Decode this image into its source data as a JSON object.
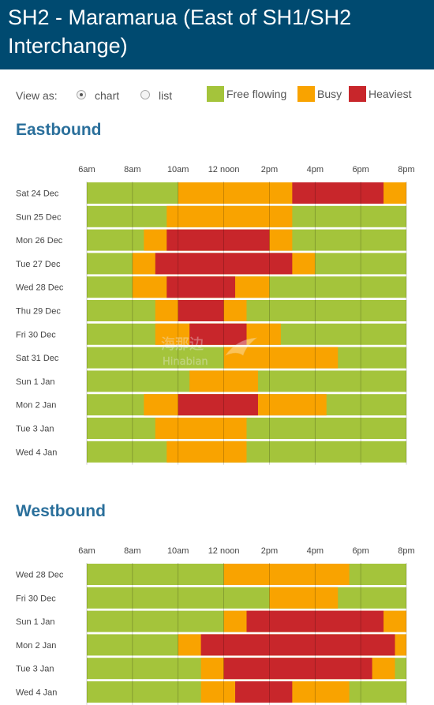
{
  "title_line1": "SH2 - Maramarua (East of SH1/SH2",
  "title_line2": "Interchange)",
  "view_as_label": "View as:",
  "view_options": {
    "chart": "chart",
    "list": "list"
  },
  "colors": {
    "free": "#a4c43b",
    "busy": "#f9a300",
    "heaviest": "#c8262b",
    "header_bg": "#004a70",
    "section": "#2a6f9b"
  },
  "legend": {
    "free": "Free flowing",
    "busy": "Busy",
    "heaviest": "Heaviest"
  },
  "watermark": {
    "cn": "海那边",
    "en": "Hinabian"
  },
  "chart_data": [
    {
      "type": "heatmap",
      "title": "Eastbound",
      "x_ticks": [
        {
          "h": 6,
          "label": "6am"
        },
        {
          "h": 8,
          "label": "8am"
        },
        {
          "h": 10,
          "label": "10am"
        },
        {
          "h": 12,
          "label": "12 noon"
        },
        {
          "h": 14,
          "label": "2pm"
        },
        {
          "h": 16,
          "label": "4pm"
        },
        {
          "h": 18,
          "label": "6pm"
        },
        {
          "h": 20,
          "label": "8pm"
        }
      ],
      "xlim": [
        6,
        20
      ],
      "rows": [
        {
          "label": "Sat 24 Dec",
          "busy": [
            [
              10,
              20
            ]
          ],
          "heaviest": [
            [
              15,
              19
            ]
          ]
        },
        {
          "label": "Sun 25 Dec",
          "busy": [
            [
              9.5,
              15
            ]
          ],
          "heaviest": []
        },
        {
          "label": "Mon 26 Dec",
          "busy": [
            [
              8.5,
              15
            ]
          ],
          "heaviest": [
            [
              9.5,
              14
            ]
          ]
        },
        {
          "label": "Tue 27 Dec",
          "busy": [
            [
              8,
              16
            ]
          ],
          "heaviest": [
            [
              9,
              15
            ]
          ]
        },
        {
          "label": "Wed 28 Dec",
          "busy": [
            [
              8,
              14
            ]
          ],
          "heaviest": [
            [
              9.5,
              12.5
            ]
          ]
        },
        {
          "label": "Thu 29 Dec",
          "busy": [
            [
              9,
              13
            ]
          ],
          "heaviest": [
            [
              10,
              12
            ]
          ]
        },
        {
          "label": "Fri 30 Dec",
          "busy": [
            [
              9,
              14.5
            ]
          ],
          "heaviest": [
            [
              10.5,
              13
            ]
          ]
        },
        {
          "label": "Sat 31 Dec",
          "busy": [
            [
              12,
              17
            ]
          ],
          "heaviest": []
        },
        {
          "label": "Sun 1 Jan",
          "busy": [
            [
              10.5,
              13.5
            ]
          ],
          "heaviest": []
        },
        {
          "label": "Mon 2 Jan",
          "busy": [
            [
              8.5,
              16.5
            ]
          ],
          "heaviest": [
            [
              10,
              13.5
            ]
          ]
        },
        {
          "label": "Tue 3 Jan",
          "busy": [
            [
              9,
              13
            ]
          ],
          "heaviest": []
        },
        {
          "label": "Wed 4 Jan",
          "busy": [
            [
              9.5,
              13
            ]
          ],
          "heaviest": []
        }
      ]
    },
    {
      "type": "heatmap",
      "title": "Westbound",
      "x_ticks": [
        {
          "h": 6,
          "label": "6am"
        },
        {
          "h": 8,
          "label": "8am"
        },
        {
          "h": 10,
          "label": "10am"
        },
        {
          "h": 12,
          "label": "12 noon"
        },
        {
          "h": 14,
          "label": "2pm"
        },
        {
          "h": 16,
          "label": "4pm"
        },
        {
          "h": 18,
          "label": "6pm"
        },
        {
          "h": 20,
          "label": "8pm"
        }
      ],
      "xlim": [
        6,
        20
      ],
      "rows": [
        {
          "label": "Wed 28 Dec",
          "busy": [
            [
              12,
              17.5
            ]
          ],
          "heaviest": []
        },
        {
          "label": "Fri 30 Dec",
          "busy": [
            [
              14,
              17
            ]
          ],
          "heaviest": []
        },
        {
          "label": "Sun 1 Jan",
          "busy": [
            [
              12,
              20
            ]
          ],
          "heaviest": [
            [
              13,
              19
            ]
          ]
        },
        {
          "label": "Mon 2 Jan",
          "busy": [
            [
              10,
              20
            ]
          ],
          "heaviest": [
            [
              11,
              19.5
            ]
          ]
        },
        {
          "label": "Tue 3 Jan",
          "busy": [
            [
              11,
              19.5
            ]
          ],
          "heaviest": [
            [
              12,
              18.5
            ]
          ]
        },
        {
          "label": "Wed 4 Jan",
          "busy": [
            [
              11,
              17.5
            ]
          ],
          "heaviest": [
            [
              12.5,
              15
            ]
          ]
        }
      ]
    }
  ]
}
